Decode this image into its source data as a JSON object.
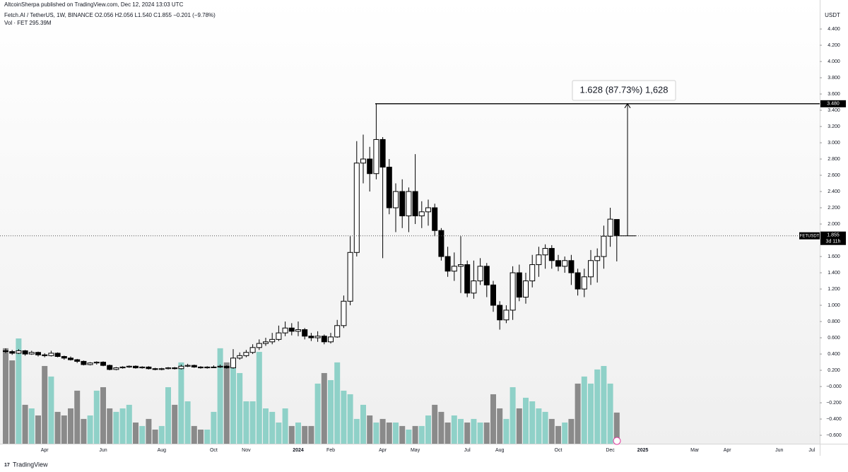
{
  "header": {
    "publisher": "AltcoinSherpa published on TradingView.com, Dec 12, 2024 13:03 UTC",
    "symbol": "Fetch.AI / TetherUS, 1W, BINANCE",
    "ohlc": "O2.056 H2.056 L1.540 C1.855 −0.201 (−9.78%)",
    "volume": "Vol · FET 295.39M",
    "currency": "USDT"
  },
  "footer": "TradingView",
  "price_line": {
    "symbol": "FETUSDT",
    "countdown": "3d 11h"
  },
  "chart_data": {
    "type": "candlestick",
    "categories": [
      null,
      null,
      null,
      null,
      null,
      null,
      "Apr",
      null,
      null,
      null,
      null,
      null,
      null,
      null,
      null,
      "Jun",
      null,
      null,
      null,
      null,
      null,
      null,
      null,
      null,
      "Aug",
      null,
      null,
      null,
      null,
      null,
      null,
      null,
      "Oct",
      null,
      null,
      null,
      null,
      "Nov",
      null,
      null,
      null,
      null,
      null,
      null,
      null,
      "2024",
      null,
      null,
      null,
      null,
      "Feb",
      null,
      null,
      null,
      null,
      null,
      null,
      null,
      "Apr",
      null,
      null,
      null,
      null,
      "May",
      null,
      null,
      null,
      null,
      null,
      null,
      null,
      "Jul",
      null,
      null,
      null,
      null,
      "Aug",
      null,
      null,
      null,
      null,
      null,
      null,
      null,
      null,
      "Oct",
      null,
      null,
      null,
      null,
      null,
      null,
      null,
      "Dec",
      null,
      null,
      null,
      null,
      "2025",
      null,
      null,
      null,
      null,
      null,
      null,
      null,
      "Mar",
      null,
      null,
      null,
      null,
      "Apr",
      null,
      null,
      null,
      null,
      null,
      null,
      null,
      "Jun",
      null,
      null,
      null,
      null,
      "Jul",
      null
    ],
    "open": [
      0.44,
      0.43,
      0.41,
      0.44,
      0.4,
      0.42,
      0.39,
      0.38,
      0.41,
      0.37,
      0.35,
      0.33,
      0.31,
      0.27,
      0.29,
      0.3,
      0.26,
      0.21,
      0.23,
      0.24,
      0.25,
      0.23,
      0.24,
      0.22,
      0.21,
      0.22,
      0.23,
      0.22,
      0.25,
      0.26,
      0.24,
      0.23,
      0.24,
      0.24,
      0.25,
      0.23,
      0.35,
      0.38,
      0.42,
      0.48,
      0.53,
      0.55,
      0.58,
      0.66,
      0.72,
      0.68,
      0.7,
      0.62,
      0.6,
      0.62,
      0.55,
      0.61,
      0.75,
      1.05,
      1.65,
      2.75,
      2.8,
      2.62,
      3.04,
      2.7,
      2.2,
      2.4,
      2.1,
      2.4,
      2.1,
      2.15,
      2.2,
      1.92,
      1.6,
      1.42,
      1.48,
      1.5,
      1.15,
      1.3,
      1.48,
      1.25,
      1.0,
      0.82,
      0.94,
      1.4,
      1.1,
      1.3,
      1.5,
      1.62,
      1.7,
      1.55,
      1.48,
      1.55,
      1.4,
      1.2,
      1.35,
      1.55,
      1.6,
      1.85,
      2.056,
      null,
      null,
      null,
      null,
      null,
      null,
      null,
      null,
      null,
      null,
      null,
      null,
      null,
      null,
      null,
      null,
      null,
      null,
      null,
      null,
      null,
      null,
      null,
      null,
      null,
      null,
      null,
      null,
      null,
      null,
      null
    ],
    "high": [
      0.47,
      0.45,
      0.46,
      0.45,
      0.44,
      0.43,
      0.41,
      0.44,
      0.42,
      0.38,
      0.37,
      0.34,
      0.32,
      0.3,
      0.31,
      0.31,
      0.27,
      0.24,
      0.25,
      0.26,
      0.26,
      0.25,
      0.25,
      0.23,
      0.23,
      0.24,
      0.24,
      0.27,
      0.28,
      0.27,
      0.25,
      0.25,
      0.26,
      0.27,
      0.26,
      0.46,
      0.42,
      0.45,
      0.52,
      0.58,
      0.6,
      0.66,
      0.75,
      0.8,
      0.78,
      0.8,
      0.72,
      0.66,
      0.68,
      0.64,
      0.66,
      0.82,
      1.12,
      1.85,
      3.02,
      3.1,
      2.95,
      3.48,
      3.07,
      2.8,
      2.5,
      2.55,
      2.45,
      2.86,
      2.28,
      2.3,
      2.25,
      1.95,
      1.72,
      1.65,
      1.85,
      1.55,
      1.55,
      1.58,
      1.52,
      1.3,
      1.05,
      1.0,
      1.48,
      1.5,
      1.4,
      1.62,
      1.72,
      1.75,
      1.74,
      1.62,
      1.6,
      1.62,
      1.45,
      1.45,
      1.68,
      1.7,
      1.98,
      2.2,
      2.056,
      null,
      null,
      null,
      null,
      null,
      null,
      null,
      null,
      null,
      null,
      null,
      null,
      null,
      null,
      null,
      null,
      null,
      null,
      null,
      null,
      null,
      null,
      null,
      null,
      null,
      null,
      null,
      null,
      null,
      null,
      null
    ],
    "low": [
      0.41,
      0.39,
      0.4,
      0.38,
      0.39,
      0.37,
      0.36,
      0.37,
      0.36,
      0.33,
      0.32,
      0.29,
      0.26,
      0.26,
      0.27,
      0.25,
      0.2,
      0.2,
      0.22,
      0.23,
      0.22,
      0.22,
      0.21,
      0.2,
      0.2,
      0.21,
      0.21,
      0.21,
      0.24,
      0.23,
      0.22,
      0.22,
      0.23,
      0.23,
      0.22,
      0.22,
      0.33,
      0.36,
      0.4,
      0.45,
      0.5,
      0.52,
      0.56,
      0.62,
      0.63,
      0.62,
      0.58,
      0.56,
      0.55,
      0.52,
      0.53,
      0.6,
      0.72,
      1.0,
      1.6,
      2.5,
      2.4,
      2.55,
      1.58,
      2.12,
      1.9,
      1.95,
      1.9,
      2.0,
      1.95,
      1.98,
      1.85,
      1.55,
      1.35,
      1.3,
      1.15,
      1.1,
      1.08,
      1.25,
      1.1,
      0.92,
      0.7,
      0.78,
      0.82,
      1.05,
      1.02,
      1.22,
      1.35,
      1.45,
      1.45,
      1.42,
      1.4,
      1.25,
      1.12,
      1.1,
      1.25,
      1.28,
      1.45,
      1.72,
      1.54,
      null,
      null,
      null,
      null,
      null,
      null,
      null,
      null,
      null,
      null,
      null,
      null,
      null,
      null,
      null,
      null,
      null,
      null,
      null,
      null,
      null,
      null,
      null,
      null,
      null,
      null,
      null,
      null,
      null,
      null,
      null
    ],
    "close": [
      0.43,
      0.41,
      0.44,
      0.4,
      0.42,
      0.39,
      0.38,
      0.41,
      0.37,
      0.35,
      0.33,
      0.31,
      0.27,
      0.29,
      0.3,
      0.26,
      0.21,
      0.23,
      0.24,
      0.25,
      0.23,
      0.24,
      0.22,
      0.21,
      0.22,
      0.23,
      0.22,
      0.25,
      0.26,
      0.24,
      0.23,
      0.24,
      0.24,
      0.25,
      0.23,
      0.35,
      0.38,
      0.42,
      0.48,
      0.53,
      0.55,
      0.58,
      0.66,
      0.72,
      0.68,
      0.7,
      0.62,
      0.6,
      0.62,
      0.55,
      0.61,
      0.75,
      1.05,
      1.65,
      2.75,
      2.8,
      2.62,
      3.04,
      2.7,
      2.2,
      2.4,
      2.1,
      2.4,
      2.1,
      2.15,
      2.2,
      1.92,
      1.6,
      1.42,
      1.48,
      1.5,
      1.15,
      1.3,
      1.48,
      1.25,
      1.0,
      0.82,
      0.94,
      1.4,
      1.1,
      1.3,
      1.5,
      1.62,
      1.7,
      1.55,
      1.48,
      1.55,
      1.4,
      1.2,
      1.35,
      1.55,
      1.6,
      1.85,
      2.06,
      1.855,
      null,
      null,
      null,
      null,
      null,
      null,
      null,
      null,
      null,
      null,
      null,
      null,
      null,
      null,
      null,
      null,
      null,
      null,
      null,
      null,
      null,
      null,
      null,
      null,
      null,
      null,
      null,
      null,
      null,
      null,
      null
    ],
    "volume": [
      905,
      790,
      998,
      369,
      335,
      268,
      737,
      637,
      302,
      268,
      335,
      503,
      235,
      268,
      503,
      536,
      335,
      302,
      335,
      369,
      201,
      168,
      235,
      134,
      168,
      536,
      369,
      771,
      402,
      168,
      134,
      134,
      302,
      905,
      771,
      804,
      670,
      402,
      402,
      871,
      335,
      302,
      201,
      335,
      168,
      201,
      168,
      168,
      570,
      670,
      603,
      771,
      503,
      469,
      235,
      369,
      268,
      201,
      235,
      201,
      201,
      168,
      134,
      168,
      168,
      268,
      369,
      302,
      201,
      268,
      235,
      201,
      235,
      201,
      201,
      469,
      335,
      235,
      536,
      335,
      436,
      402,
      335,
      302,
      235,
      168,
      201,
      235,
      570,
      637,
      570,
      704,
      737,
      570,
      295.39,
      null,
      null,
      null,
      null,
      null,
      null,
      null,
      null,
      null,
      null,
      null,
      null,
      null,
      null,
      null,
      null,
      null,
      null,
      null,
      null,
      null,
      null,
      null,
      null,
      null,
      null,
      null,
      null,
      null,
      null,
      null
    ],
    "up_color": "#ffffff",
    "down_color": "#000000",
    "volume_up_color": "#8fd1c8",
    "volume_down_color": "#8a8a8a",
    "ylim": [
      -0.704,
      4.609
    ],
    "yticks": [
      {
        "value": 4.4,
        "label": "4.400"
      },
      {
        "value": 4.2,
        "label": "4.200"
      },
      {
        "value": 4.0,
        "label": "4.000"
      },
      {
        "value": 3.8,
        "label": "3.800"
      },
      {
        "value": 3.6,
        "label": "3.600"
      },
      {
        "value": 3.4,
        "label": "3.400"
      },
      {
        "value": 3.2,
        "label": "3.200"
      },
      {
        "value": 3.0,
        "label": "3.000"
      },
      {
        "value": 2.8,
        "label": "2.800"
      },
      {
        "value": 2.6,
        "label": "2.600"
      },
      {
        "value": 2.4,
        "label": "2.400"
      },
      {
        "value": 2.2,
        "label": "2.200"
      },
      {
        "value": 2.0,
        "label": "2.000"
      },
      {
        "value": 1.6,
        "label": "1.600"
      },
      {
        "value": 1.4,
        "label": "1.400"
      },
      {
        "value": 1.2,
        "label": "1.200"
      },
      {
        "value": 1.0,
        "label": "1.000"
      },
      {
        "value": 0.8,
        "label": "0.800"
      },
      {
        "value": 0.6,
        "label": "0.600"
      },
      {
        "value": 0.4,
        "label": "0.400"
      },
      {
        "value": 0.2,
        "label": "0.200"
      },
      {
        "value": 0,
        "label": "−0.000"
      },
      {
        "value": -0.2,
        "label": "−0.200"
      },
      {
        "value": -0.4,
        "label": "−0.400"
      },
      {
        "value": -0.6,
        "label": "−0.600"
      }
    ],
    "annotation": {
      "level": {
        "value": 3.48,
        "label": "3.480"
      },
      "measure_label": "1.628 (87.73%) 1,628"
    }
  }
}
